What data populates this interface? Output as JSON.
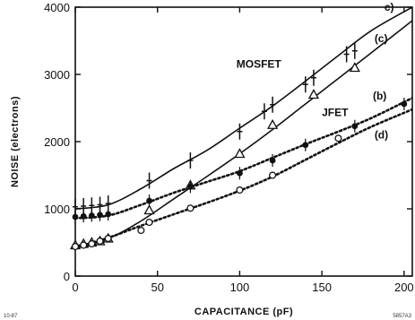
{
  "chart_data": {
    "type": "line",
    "title": "",
    "xlabel": "CAPACITANCE   (pF)",
    "ylabel": "NOISE  (electrons)",
    "xlim": [
      0,
      205
    ],
    "ylim": [
      0,
      4000
    ],
    "x_ticks": [
      0,
      50,
      100,
      150,
      200
    ],
    "y_ticks": [
      0,
      1000,
      2000,
      3000,
      4000
    ],
    "grid": false,
    "series": [
      {
        "key": "a",
        "label_text": "c)",
        "name_text": "MOSFET",
        "marker": "cross",
        "style": "solid",
        "points": [
          [
            0,
            1030
          ],
          [
            5,
            1040
          ],
          [
            10,
            1050
          ],
          [
            15,
            1060
          ],
          [
            20,
            1080
          ],
          [
            45,
            1420
          ],
          [
            70,
            1720
          ],
          [
            100,
            2150
          ],
          [
            115,
            2450
          ],
          [
            120,
            2550
          ],
          [
            140,
            2850
          ],
          [
            145,
            2950
          ],
          [
            165,
            3300
          ],
          [
            170,
            3350
          ]
        ],
        "curve": [
          [
            0,
            1000
          ],
          [
            20,
            1060
          ],
          [
            40,
            1300
          ],
          [
            60,
            1600
          ],
          [
            80,
            1870
          ],
          [
            100,
            2200
          ],
          [
            120,
            2530
          ],
          [
            140,
            2900
          ],
          [
            160,
            3280
          ],
          [
            180,
            3650
          ],
          [
            205,
            4000
          ]
        ]
      },
      {
        "key": "c",
        "label_text": "(c)",
        "name_text": "",
        "marker": "triangle",
        "style": "solid",
        "points": [
          [
            0,
            460
          ],
          [
            5,
            480
          ],
          [
            10,
            500
          ],
          [
            15,
            520
          ],
          [
            20,
            560
          ],
          [
            45,
            980
          ],
          [
            70,
            1350
          ],
          [
            100,
            1820
          ],
          [
            120,
            2250
          ],
          [
            145,
            2700
          ],
          [
            170,
            3100
          ]
        ],
        "curve": [
          [
            0,
            450
          ],
          [
            20,
            560
          ],
          [
            40,
            820
          ],
          [
            60,
            1150
          ],
          [
            80,
            1480
          ],
          [
            100,
            1820
          ],
          [
            120,
            2180
          ],
          [
            140,
            2560
          ],
          [
            160,
            2940
          ],
          [
            180,
            3320
          ],
          [
            205,
            3800
          ]
        ]
      },
      {
        "key": "b",
        "label_text": "(b)",
        "name_text": "JFET",
        "marker": "filled-circle",
        "style": "dotted",
        "points": [
          [
            0,
            880
          ],
          [
            5,
            890
          ],
          [
            10,
            900
          ],
          [
            15,
            910
          ],
          [
            20,
            920
          ],
          [
            45,
            1120
          ],
          [
            70,
            1330
          ],
          [
            100,
            1530
          ],
          [
            120,
            1720
          ],
          [
            140,
            1950
          ],
          [
            170,
            2230
          ],
          [
            200,
            2560
          ]
        ],
        "curve": [
          [
            0,
            860
          ],
          [
            20,
            900
          ],
          [
            40,
            1060
          ],
          [
            60,
            1240
          ],
          [
            80,
            1400
          ],
          [
            100,
            1560
          ],
          [
            120,
            1760
          ],
          [
            140,
            1960
          ],
          [
            160,
            2150
          ],
          [
            180,
            2350
          ],
          [
            205,
            2650
          ]
        ]
      },
      {
        "key": "d",
        "label_text": "(d)",
        "name_text": "",
        "marker": "open-circle",
        "style": "dotted",
        "points": [
          [
            0,
            440
          ],
          [
            5,
            460
          ],
          [
            10,
            480
          ],
          [
            15,
            520
          ],
          [
            20,
            560
          ],
          [
            40,
            680
          ],
          [
            45,
            800
          ],
          [
            70,
            1010
          ],
          [
            100,
            1280
          ],
          [
            120,
            1500
          ],
          [
            160,
            2050
          ]
        ],
        "curve": [
          [
            0,
            430
          ],
          [
            20,
            570
          ],
          [
            40,
            750
          ],
          [
            60,
            920
          ],
          [
            80,
            1090
          ],
          [
            100,
            1270
          ],
          [
            120,
            1480
          ],
          [
            140,
            1730
          ],
          [
            160,
            1980
          ],
          [
            180,
            2220
          ],
          [
            205,
            2480
          ]
        ]
      }
    ]
  },
  "corner_left": "10-87",
  "corner_right": "5857A3"
}
